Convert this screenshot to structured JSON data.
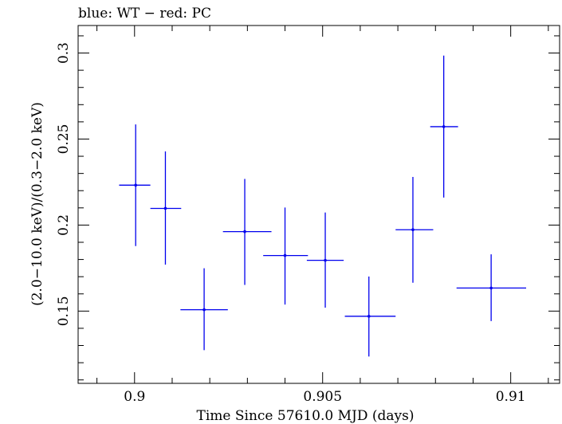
{
  "header": {
    "text": "blue: WT − red: PC"
  },
  "chart_data": {
    "type": "scatter",
    "title": "blue: WT − red: PC",
    "xlabel": "Time Since 57610.0 MJD (days)",
    "ylabel": "(2.0−10.0 keV)/(0.3−2.0 keV)",
    "xlim": [
      0.8985,
      0.9113
    ],
    "ylim": [
      0.108,
      0.316
    ],
    "x_ticks": [
      {
        "value": 0.9,
        "label": "0.9"
      },
      {
        "value": 0.905,
        "label": "0.905"
      },
      {
        "value": 0.91,
        "label": "0.91"
      }
    ],
    "y_ticks": [
      {
        "value": 0.15,
        "label": "0.15"
      },
      {
        "value": 0.2,
        "label": "0.2"
      },
      {
        "value": 0.25,
        "label": "0.25"
      },
      {
        "value": 0.3,
        "label": "0.3"
      }
    ],
    "grid": false,
    "series": [
      {
        "name": "WT",
        "color": "#0000ee",
        "points": [
          {
            "x": 0.90003,
            "y": 0.2232,
            "xlo": 0.89959,
            "xhi": 0.90042,
            "ylo": 0.1878,
            "yhi": 0.2585
          },
          {
            "x": 0.90082,
            "y": 0.2097,
            "xlo": 0.90042,
            "xhi": 0.90124,
            "ylo": 0.177,
            "yhi": 0.2428
          },
          {
            "x": 0.90185,
            "y": 0.1508,
            "xlo": 0.90122,
            "xhi": 0.90248,
            "ylo": 0.1273,
            "yhi": 0.1749
          },
          {
            "x": 0.90293,
            "y": 0.1962,
            "xlo": 0.90235,
            "xhi": 0.90364,
            "ylo": 0.1652,
            "yhi": 0.2268
          },
          {
            "x": 0.904,
            "y": 0.1823,
            "xlo": 0.90342,
            "xhi": 0.90461,
            "ylo": 0.1538,
            "yhi": 0.2102
          },
          {
            "x": 0.90507,
            "y": 0.1795,
            "xlo": 0.90458,
            "xhi": 0.90556,
            "ylo": 0.152,
            "yhi": 0.2073
          },
          {
            "x": 0.90623,
            "y": 0.147,
            "xlo": 0.90559,
            "xhi": 0.90694,
            "ylo": 0.1236,
            "yhi": 0.1701
          },
          {
            "x": 0.9074,
            "y": 0.1973,
            "xlo": 0.90694,
            "xhi": 0.90794,
            "ylo": 0.1665,
            "yhi": 0.228
          },
          {
            "x": 0.90822,
            "y": 0.2572,
            "xlo": 0.90786,
            "xhi": 0.9086,
            "ylo": 0.216,
            "yhi": 0.2985
          },
          {
            "x": 0.90948,
            "y": 0.1634,
            "xlo": 0.90856,
            "xhi": 0.91041,
            "ylo": 0.1442,
            "yhi": 0.183
          }
        ]
      }
    ]
  }
}
